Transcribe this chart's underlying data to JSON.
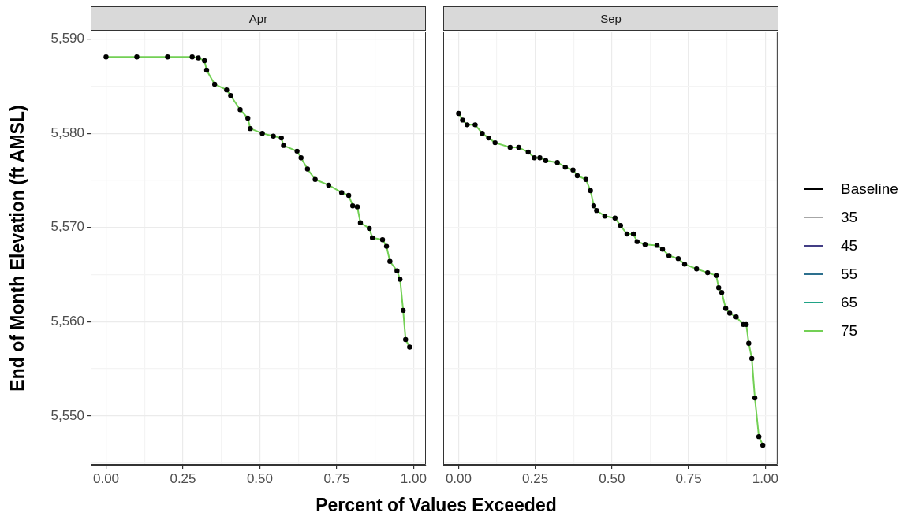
{
  "chart_data": [
    {
      "type": "line",
      "title": "Apr",
      "ylabel": "End of Month Elevation (ft AMSL)",
      "xlabel": "Percent of Values Exceeded",
      "xlim": [
        -0.05,
        1.04
      ],
      "xticks": [
        {
          "value": 0,
          "label": "0.00"
        },
        {
          "value": 0.125,
          "label": null
        },
        {
          "value": 0.25,
          "label": "0.25"
        },
        {
          "value": 0.375,
          "label": null
        },
        {
          "value": 0.5,
          "label": "0.50"
        },
        {
          "value": 0.625,
          "label": null
        },
        {
          "value": 0.75,
          "label": "0.75"
        },
        {
          "value": 0.875,
          "label": null
        },
        {
          "value": 1,
          "label": "1.00"
        }
      ],
      "ylim": [
        5544.8,
        5590.8
      ],
      "yticks": [
        {
          "value": 5545,
          "label": null
        },
        {
          "value": 5550,
          "label": "5,550"
        },
        {
          "value": 5555,
          "label": null
        },
        {
          "value": 5560,
          "label": "5,560"
        },
        {
          "value": 5565,
          "label": null
        },
        {
          "value": 5570,
          "label": "5,570"
        },
        {
          "value": 5575,
          "label": null
        },
        {
          "value": 5580,
          "label": "5,580"
        },
        {
          "value": 5585,
          "label": null
        },
        {
          "value": 5590,
          "label": "5,590"
        }
      ],
      "grid": true,
      "legend": "right",
      "line_style": "solid",
      "x": [
        0,
        0.1,
        0.2,
        0.28,
        0.3,
        0.32,
        0.327,
        0.353,
        0.392,
        0.405,
        0.436,
        0.461,
        0.469,
        0.508,
        0.544,
        0.57,
        0.577,
        0.621,
        0.634,
        0.655,
        0.68,
        0.724,
        0.766,
        0.789,
        0.802,
        0.817,
        0.827,
        0.856,
        0.866,
        0.899,
        0.912,
        0.923,
        0.946,
        0.956,
        0.966,
        0.974,
        0.987
      ],
      "series": [
        {
          "name": "Baseline",
          "type": "scatter",
          "color": "#000000",
          "marker": "circle",
          "values": [
            5588.1,
            5588.1,
            5588.1,
            5588.1,
            5588.0,
            5587.7,
            5586.7,
            5585.2,
            5584.6,
            5584.0,
            5582.5,
            5581.6,
            5580.5,
            5580.0,
            5579.7,
            5579.5,
            5578.7,
            5578.1,
            5577.4,
            5576.2,
            5575.1,
            5574.5,
            5573.7,
            5573.4,
            5572.3,
            5572.2,
            5570.5,
            5569.9,
            5568.9,
            5568.7,
            5568.0,
            5566.4,
            5565.4,
            5564.5,
            5561.2,
            5558.1,
            5557.3
          ]
        },
        {
          "name": "35",
          "color": "#a6a6a6",
          "values": [
            null,
            null,
            null,
            null,
            null,
            null,
            null,
            null,
            null,
            null,
            null,
            null,
            null,
            null,
            null,
            null,
            null,
            null,
            null,
            null,
            null,
            null,
            null,
            null,
            null,
            null,
            null,
            null,
            null,
            null,
            null,
            null,
            null,
            null,
            null,
            null,
            null
          ]
        },
        {
          "name": "45",
          "color": "#433e85",
          "values": [
            null,
            null,
            null,
            null,
            null,
            null,
            null,
            null,
            null,
            null,
            null,
            null,
            null,
            null,
            null,
            null,
            null,
            null,
            null,
            null,
            null,
            null,
            null,
            null,
            null,
            null,
            null,
            null,
            null,
            null,
            null,
            null,
            null,
            null,
            null,
            null,
            null
          ]
        },
        {
          "name": "55",
          "color": "#2d708e",
          "values": [
            null,
            null,
            null,
            null,
            null,
            null,
            null,
            null,
            null,
            null,
            null,
            null,
            null,
            null,
            null,
            null,
            null,
            null,
            null,
            null,
            null,
            null,
            null,
            null,
            null,
            null,
            null,
            null,
            null,
            null,
            null,
            null,
            null,
            null,
            null,
            null,
            null
          ]
        },
        {
          "name": "65",
          "color": "#20a386",
          "values": [
            null,
            null,
            null,
            null,
            null,
            null,
            null,
            null,
            null,
            null,
            null,
            null,
            null,
            null,
            null,
            null,
            null,
            null,
            null,
            null,
            null,
            null,
            null,
            null,
            null,
            null,
            null,
            null,
            null,
            null,
            null,
            null,
            null,
            null,
            null,
            null,
            null
          ]
        },
        {
          "name": "75",
          "color": "#73d055",
          "values": [
            5588.1,
            5588.1,
            5588.1,
            5588.1,
            5588.0,
            5587.7,
            5586.7,
            5585.2,
            5584.6,
            5584.0,
            5582.5,
            5581.6,
            5580.5,
            5580.0,
            5579.7,
            5579.5,
            5578.7,
            5578.1,
            5577.4,
            5576.2,
            5575.1,
            5574.5,
            5573.7,
            5573.4,
            5572.3,
            5572.2,
            5570.5,
            5569.9,
            5568.9,
            5568.7,
            5568.0,
            5566.4,
            5565.4,
            5564.5,
            5561.2,
            5558.1,
            5557.3
          ]
        }
      ]
    },
    {
      "type": "line",
      "title": "Sep",
      "xlim": [
        -0.05,
        1.04
      ],
      "xticks": [
        {
          "value": 0,
          "label": "0.00"
        },
        {
          "value": 0.125,
          "label": null
        },
        {
          "value": 0.25,
          "label": "0.25"
        },
        {
          "value": 0.375,
          "label": null
        },
        {
          "value": 0.5,
          "label": "0.50"
        },
        {
          "value": 0.625,
          "label": null
        },
        {
          "value": 0.75,
          "label": "0.75"
        },
        {
          "value": 0.875,
          "label": null
        },
        {
          "value": 1,
          "label": "1.00"
        }
      ],
      "ylim": [
        5544.8,
        5590.8
      ],
      "yticks": [
        {
          "value": 5545,
          "label": null
        },
        {
          "value": 5550,
          "label": null
        },
        {
          "value": 5555,
          "label": null
        },
        {
          "value": 5560,
          "label": null
        },
        {
          "value": 5565,
          "label": null
        },
        {
          "value": 5570,
          "label": null
        },
        {
          "value": 5575,
          "label": null
        },
        {
          "value": 5580,
          "label": null
        },
        {
          "value": 5585,
          "label": null
        },
        {
          "value": 5590,
          "label": null
        }
      ],
      "tick_labels": "x",
      "grid": true,
      "line_style": "solid",
      "x": [
        0,
        0.013,
        0.028,
        0.054,
        0.077,
        0.098,
        0.119,
        0.168,
        0.196,
        0.227,
        0.247,
        0.265,
        0.284,
        0.322,
        0.348,
        0.373,
        0.387,
        0.415,
        0.43,
        0.441,
        0.45,
        0.477,
        0.51,
        0.528,
        0.549,
        0.57,
        0.582,
        0.608,
        0.647,
        0.665,
        0.686,
        0.716,
        0.737,
        0.776,
        0.812,
        0.84,
        0.848,
        0.858,
        0.871,
        0.884,
        0.905,
        0.928,
        0.938,
        0.946,
        0.956,
        0.966,
        0.979,
        0.992
      ],
      "series": [
        {
          "type": "scatter",
          "color": "#000000",
          "marker": "circle",
          "values": [
            5582.1,
            5581.4,
            5580.9,
            5580.9,
            5580.0,
            5579.5,
            5579.0,
            5578.5,
            5578.5,
            5578.0,
            5577.4,
            5577.4,
            5577.1,
            5576.9,
            5576.4,
            5576.1,
            5575.5,
            5575.1,
            5573.9,
            5572.3,
            5571.8,
            5571.2,
            5571.0,
            5570.2,
            5569.3,
            5569.3,
            5568.5,
            5568.2,
            5568.1,
            5567.7,
            5567.0,
            5566.7,
            5566.1,
            5565.6,
            5565.2,
            5564.9,
            5563.6,
            5563.1,
            5561.4,
            5560.9,
            5560.5,
            5559.7,
            5559.7,
            5557.7,
            5556.1,
            5551.9,
            5547.8,
            5546.9
          ]
        },
        {
          "color": "#73d055",
          "values": [
            5582.1,
            5581.4,
            5580.9,
            5580.9,
            5580.0,
            5579.5,
            5579.0,
            5578.5,
            5578.5,
            5578.0,
            5577.4,
            5577.4,
            5577.1,
            5576.9,
            5576.4,
            5576.1,
            5575.5,
            5575.1,
            5573.9,
            5572.3,
            5571.8,
            5571.2,
            5571.0,
            5570.2,
            5569.3,
            5569.3,
            5568.5,
            5568.2,
            5568.1,
            5567.7,
            5567.0,
            5566.7,
            5566.1,
            5565.6,
            5565.2,
            5564.9,
            5563.6,
            5563.1,
            5561.4,
            5560.9,
            5560.5,
            5559.7,
            5559.7,
            5557.7,
            5556.1,
            5551.9,
            5547.8,
            5546.9
          ]
        }
      ]
    }
  ]
}
